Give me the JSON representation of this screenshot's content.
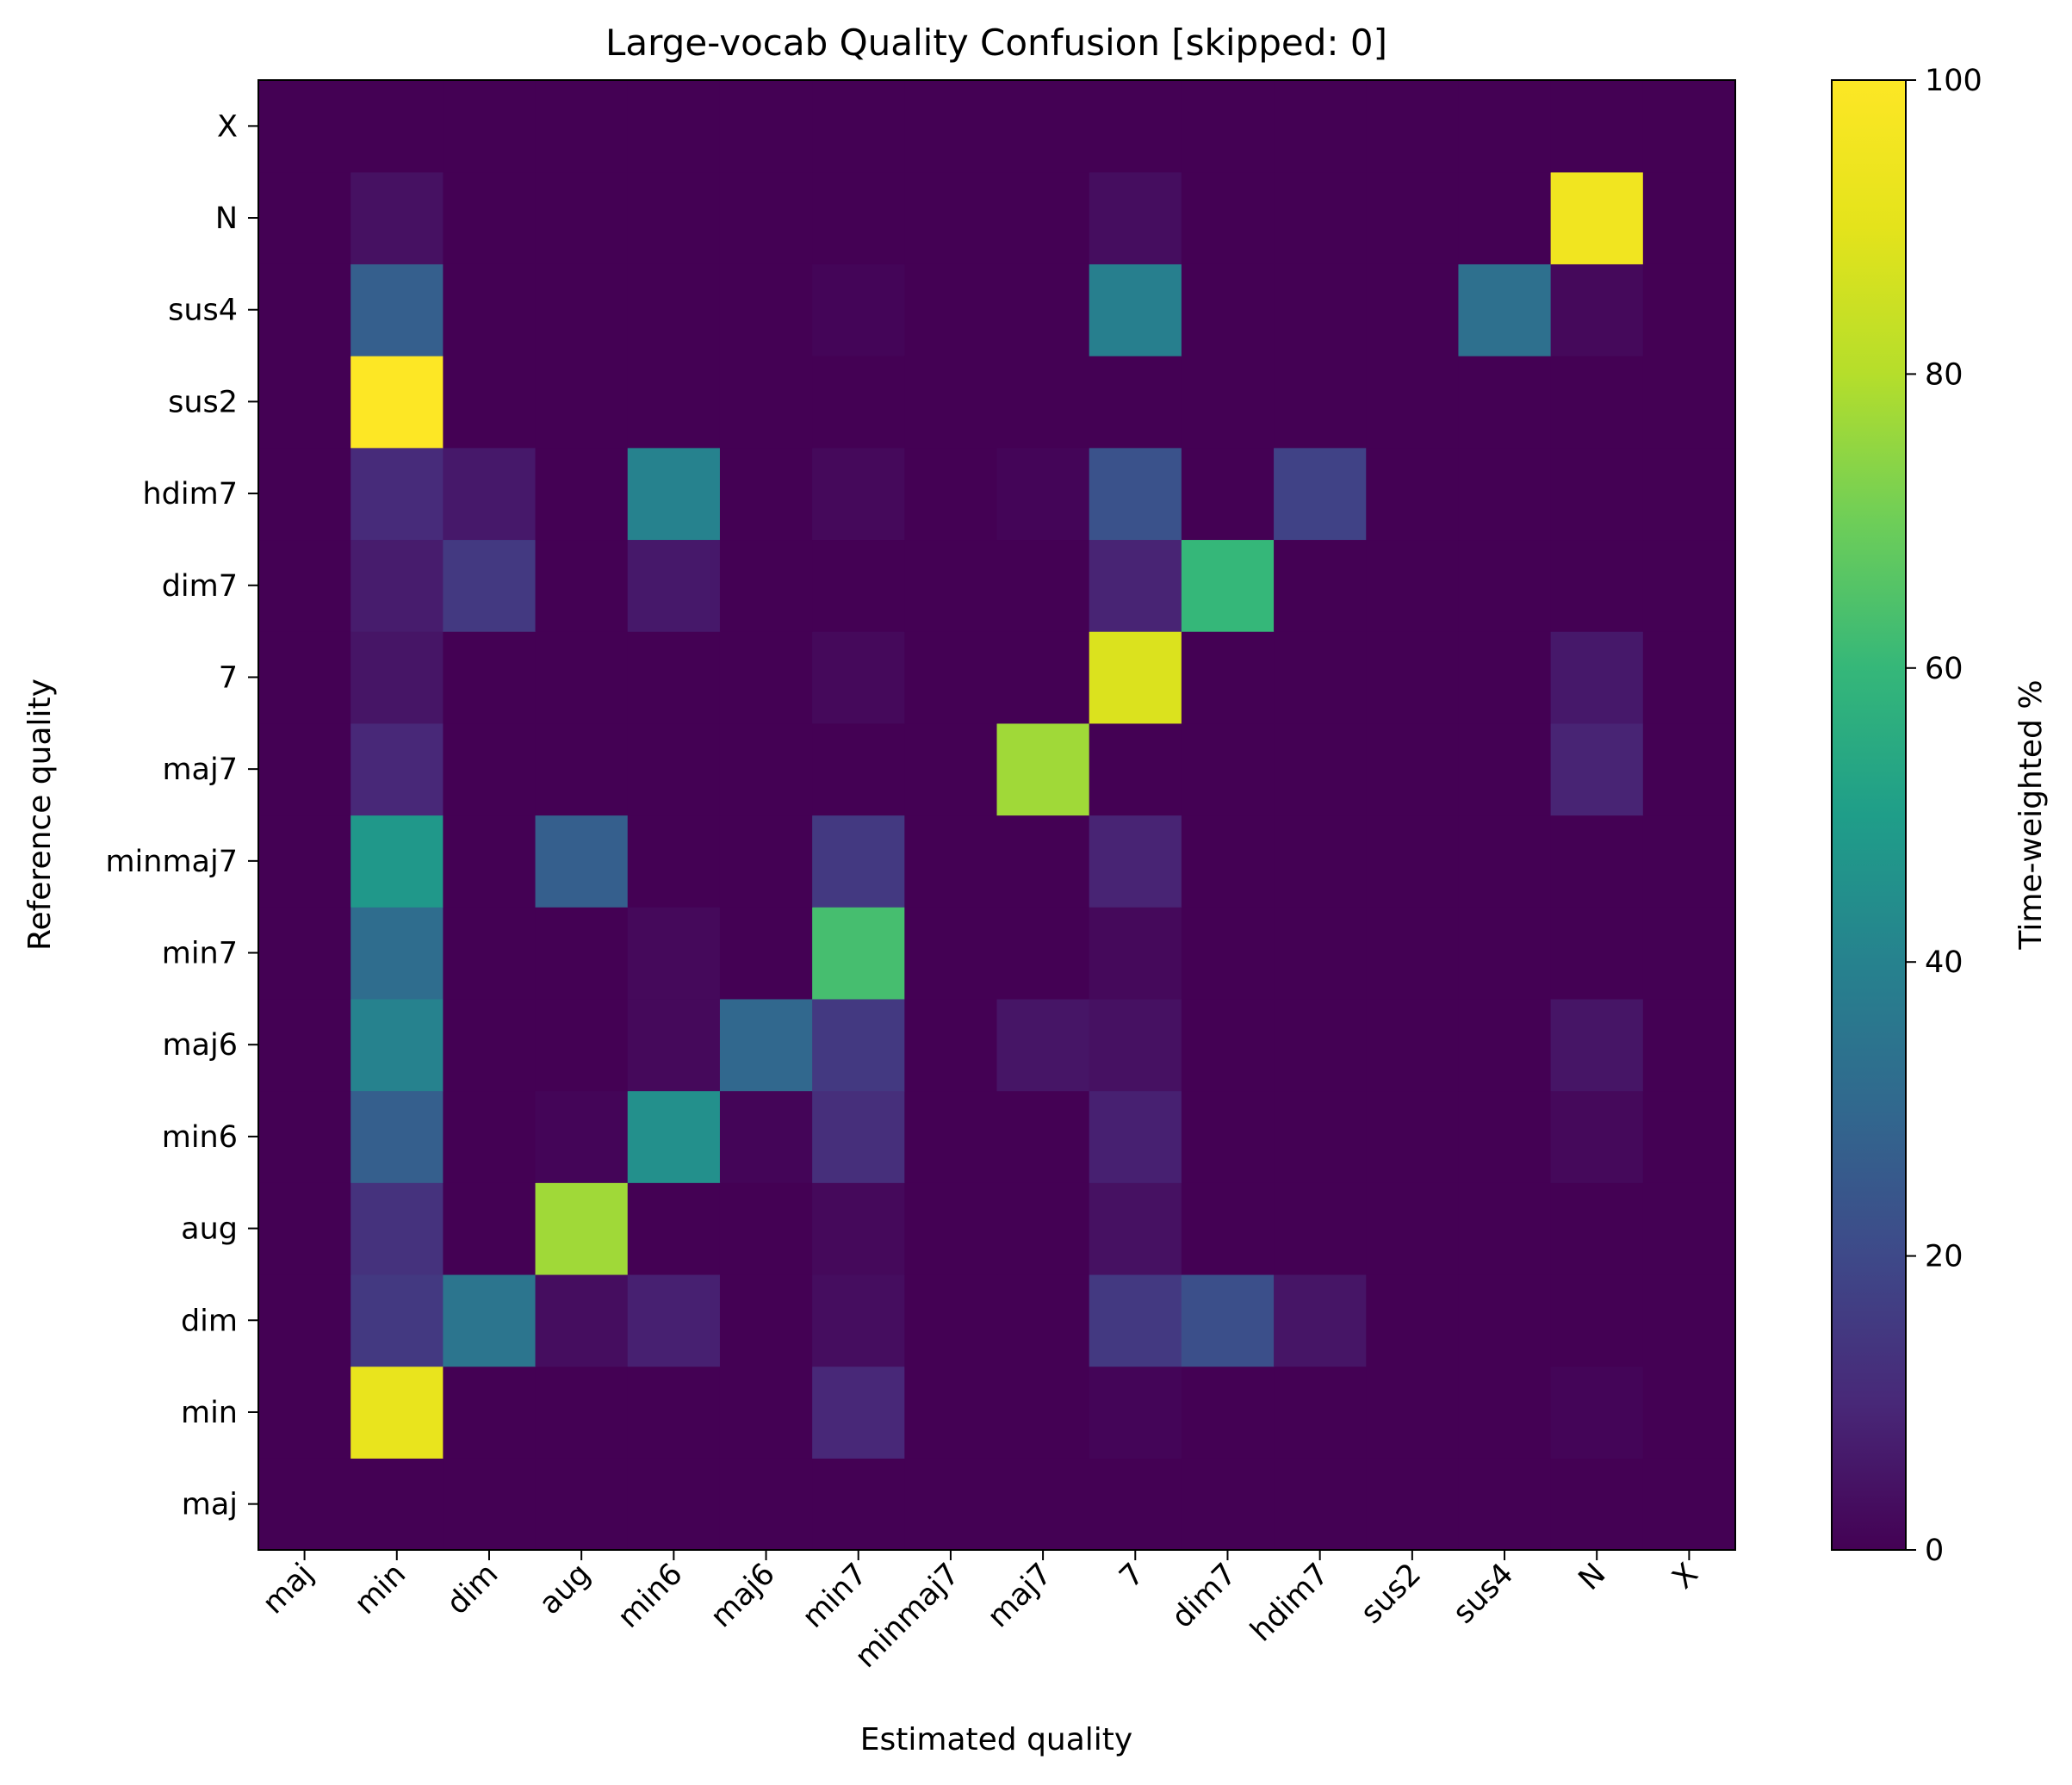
{
  "chart_data": {
    "type": "heatmap",
    "title": "Large-vocab Quality Confusion  [skipped: 0]",
    "xlabel": "Estimated quality",
    "ylabel": "Reference quality",
    "x_categories": [
      "maj",
      "min",
      "dim",
      "aug",
      "min6",
      "maj6",
      "min7",
      "minmaj7",
      "maj7",
      "7",
      "dim7",
      "hdim7",
      "sus2",
      "sus4",
      "N",
      "X"
    ],
    "y_categories": [
      "maj",
      "min",
      "dim",
      "aug",
      "min6",
      "maj6",
      "min7",
      "minmaj7",
      "maj7",
      "7",
      "dim7",
      "hdim7",
      "sus2",
      "sus4",
      "N",
      "X"
    ],
    "values": [
      [
        0,
        0,
        0,
        0,
        0,
        0,
        0,
        0,
        0,
        0,
        0,
        0,
        0,
        0,
        0,
        0
      ],
      [
        0,
        92,
        0,
        0,
        0,
        0,
        10,
        0,
        0,
        1,
        0,
        0,
        0,
        0,
        1,
        0
      ],
      [
        0,
        15,
        35,
        3,
        8,
        0,
        3,
        0,
        0,
        15,
        22,
        5,
        0,
        0,
        0,
        0
      ],
      [
        0,
        13,
        0,
        77,
        0,
        0,
        2,
        0,
        0,
        4,
        0,
        0,
        0,
        0,
        0,
        0
      ],
      [
        0,
        27,
        0,
        1,
        45,
        1,
        12,
        0,
        0,
        8,
        0,
        0,
        0,
        0,
        2,
        0
      ],
      [
        0,
        40,
        0,
        0,
        2,
        30,
        15,
        0,
        5,
        4,
        0,
        0,
        0,
        0,
        5,
        0
      ],
      [
        0,
        32,
        0,
        0,
        2,
        0,
        63,
        0,
        0,
        2,
        0,
        0,
        0,
        0,
        0,
        0
      ],
      [
        0,
        48,
        0,
        27,
        0,
        0,
        15,
        0,
        0,
        9,
        0,
        0,
        0,
        0,
        0,
        0
      ],
      [
        0,
        10,
        0,
        0,
        0,
        0,
        0,
        0,
        77,
        0,
        0,
        0,
        0,
        0,
        9,
        0
      ],
      [
        0,
        5,
        0,
        0,
        0,
        0,
        2,
        0,
        0,
        88,
        0,
        0,
        0,
        0,
        6,
        0
      ],
      [
        0,
        7,
        15,
        0,
        6,
        0,
        0,
        0,
        0,
        9,
        60,
        0,
        0,
        0,
        0,
        0
      ],
      [
        0,
        11,
        6,
        0,
        40,
        0,
        2,
        0,
        1,
        23,
        0,
        18,
        0,
        0,
        0,
        0
      ],
      [
        0,
        100,
        0,
        0,
        0,
        0,
        0,
        0,
        0,
        0,
        0,
        0,
        0,
        0,
        0,
        0
      ],
      [
        0,
        27,
        0,
        0,
        0,
        0,
        1,
        0,
        0,
        39,
        0,
        0,
        0,
        33,
        2,
        0
      ],
      [
        0,
        4,
        0,
        0,
        0,
        0,
        0,
        0,
        0,
        3,
        0,
        0,
        0,
        0,
        95,
        0
      ],
      [
        0,
        0,
        0,
        0,
        0,
        0,
        0,
        0,
        0,
        0,
        0,
        0,
        0,
        0,
        0,
        0
      ]
    ],
    "values_row_order": "bottom-to-top (first row = maj)",
    "colormap": "viridis",
    "colorbar": {
      "label": "Time-weighted %",
      "range": [
        0,
        100
      ],
      "ticks": [
        "0",
        "20",
        "40",
        "60",
        "80",
        "100"
      ]
    }
  }
}
